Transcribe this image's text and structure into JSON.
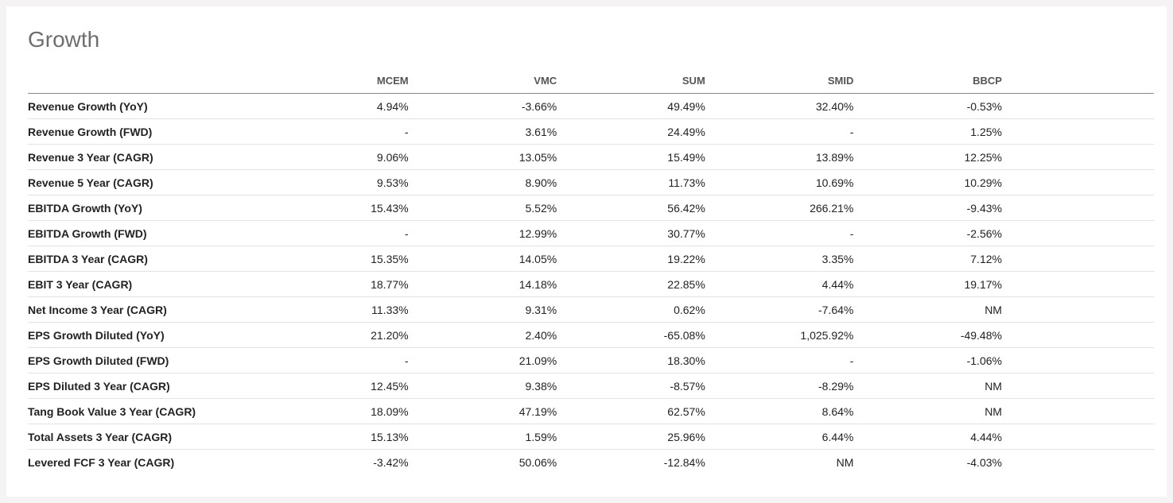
{
  "section": {
    "title": "Growth"
  },
  "table": {
    "columns": [
      "MCEM",
      "VMC",
      "SUM",
      "SMID",
      "BBCP"
    ],
    "rows": [
      {
        "label": "Revenue Growth (YoY)",
        "values": [
          "4.94%",
          "-3.66%",
          "49.49%",
          "32.40%",
          "-0.53%"
        ]
      },
      {
        "label": "Revenue Growth (FWD)",
        "values": [
          "-",
          "3.61%",
          "24.49%",
          "-",
          "1.25%"
        ]
      },
      {
        "label": "Revenue 3 Year (CAGR)",
        "values": [
          "9.06%",
          "13.05%",
          "15.49%",
          "13.89%",
          "12.25%"
        ]
      },
      {
        "label": "Revenue 5 Year (CAGR)",
        "values": [
          "9.53%",
          "8.90%",
          "11.73%",
          "10.69%",
          "10.29%"
        ]
      },
      {
        "label": "EBITDA Growth (YoY)",
        "values": [
          "15.43%",
          "5.52%",
          "56.42%",
          "266.21%",
          "-9.43%"
        ]
      },
      {
        "label": "EBITDA Growth (FWD)",
        "values": [
          "-",
          "12.99%",
          "30.77%",
          "-",
          "-2.56%"
        ]
      },
      {
        "label": "EBITDA 3 Year (CAGR)",
        "values": [
          "15.35%",
          "14.05%",
          "19.22%",
          "3.35%",
          "7.12%"
        ]
      },
      {
        "label": "EBIT 3 Year (CAGR)",
        "values": [
          "18.77%",
          "14.18%",
          "22.85%",
          "4.44%",
          "19.17%"
        ]
      },
      {
        "label": "Net Income 3 Year (CAGR)",
        "values": [
          "11.33%",
          "9.31%",
          "0.62%",
          "-7.64%",
          "NM"
        ]
      },
      {
        "label": "EPS Growth Diluted (YoY)",
        "values": [
          "21.20%",
          "2.40%",
          "-65.08%",
          "1,025.92%",
          "-49.48%"
        ]
      },
      {
        "label": "EPS Growth Diluted (FWD)",
        "values": [
          "-",
          "21.09%",
          "18.30%",
          "-",
          "-1.06%"
        ]
      },
      {
        "label": "EPS Diluted 3 Year (CAGR)",
        "values": [
          "12.45%",
          "9.38%",
          "-8.57%",
          "-8.29%",
          "NM"
        ]
      },
      {
        "label": "Tang Book Value 3 Year (CAGR)",
        "values": [
          "18.09%",
          "47.19%",
          "62.57%",
          "8.64%",
          "NM"
        ]
      },
      {
        "label": "Total Assets 3 Year (CAGR)",
        "values": [
          "15.13%",
          "1.59%",
          "25.96%",
          "6.44%",
          "4.44%"
        ]
      },
      {
        "label": "Levered FCF 3 Year (CAGR)",
        "values": [
          "-3.42%",
          "50.06%",
          "-12.84%",
          "NM",
          "-4.03%"
        ]
      }
    ]
  }
}
